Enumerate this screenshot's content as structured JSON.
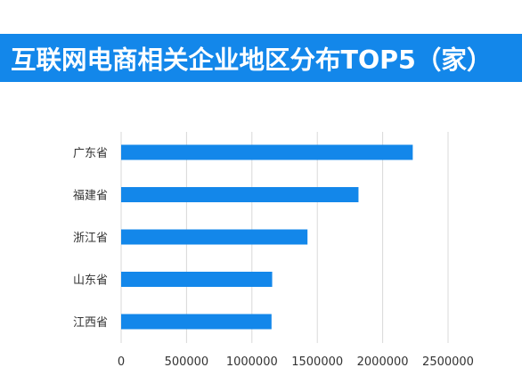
{
  "chart_data": {
    "type": "bar",
    "orientation": "horizontal",
    "title": "互联网电商相关企业地区分布TOP5（家）",
    "categories": [
      "广东省",
      "福建省",
      "浙江省",
      "山东省",
      "江西省"
    ],
    "values": [
      2230000,
      1815000,
      1425000,
      1155000,
      1150000
    ],
    "xlabel": "",
    "ylabel": "",
    "xlim": [
      0,
      2500000
    ],
    "x_ticks": [
      "0",
      "500000",
      "1000000",
      "1500000",
      "2000000",
      "2500000"
    ],
    "grid": true,
    "bar_color": "#1387ea",
    "title_background": "#1387ea"
  }
}
